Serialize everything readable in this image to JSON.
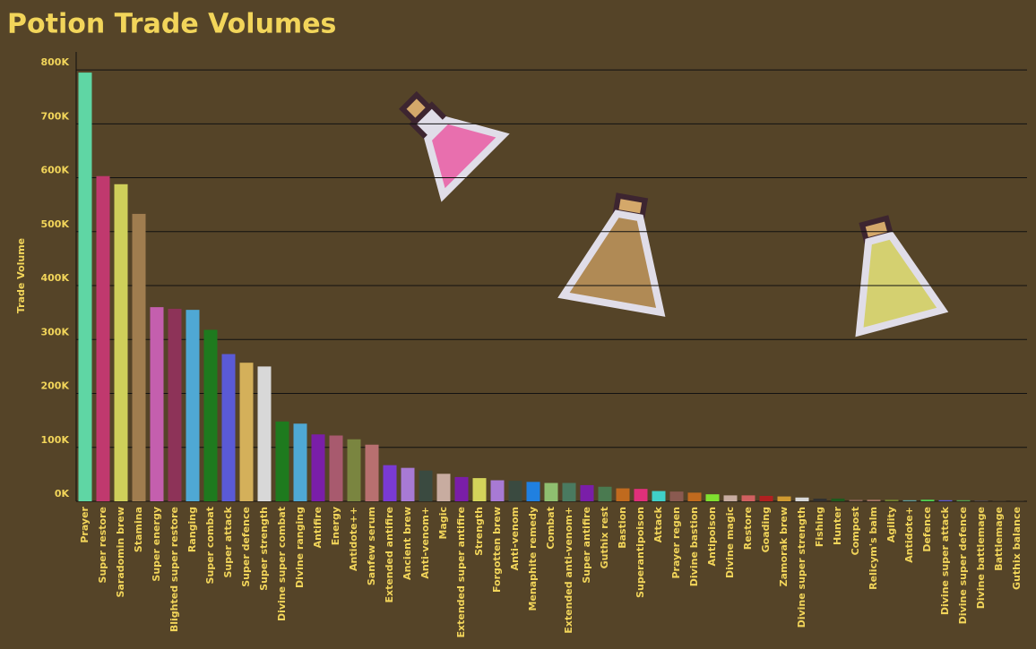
{
  "chart_data": {
    "type": "bar",
    "title": "Potion Trade Volumes",
    "y_label": "Trade Volume",
    "categories": [
      "Prayer",
      "Super restore",
      "Saradomin brew",
      "Stamina",
      "Super energy",
      "Blighted super restore",
      "Ranging",
      "Super combat",
      "Super attack",
      "Super defence",
      "Super strength",
      "Divine super combat",
      "Divine ranging",
      "Antifire",
      "Energy",
      "Antidote++",
      "Sanfew serum",
      "Extended antifire",
      "Ancient brew",
      "Anti-venom+",
      "Magic",
      "Extended super antifire",
      "Strength",
      "Forgotten brew",
      "Anti-venom",
      "Menaphite remedy",
      "Combat",
      "Extended anti-venom+",
      "Super antifire",
      "Guthix rest",
      "Bastion",
      "Superantipoison",
      "Attack",
      "Prayer regen",
      "Divine bastion",
      "Antipoison",
      "Divine magic",
      "Restore",
      "Goading",
      "Zamorak brew",
      "Divine super strength",
      "Fishing",
      "Hunter",
      "Compost",
      "Relicym's balm",
      "Agility",
      "Antidote+",
      "Defence",
      "Divine super attack",
      "Divine super defence",
      "Divine battlemage",
      "Battlemage",
      "Guthix balance"
    ],
    "values": [
      795000,
      603000,
      588000,
      533000,
      360000,
      357000,
      355000,
      318000,
      273000,
      257000,
      250000,
      148000,
      144000,
      124000,
      122000,
      115000,
      105000,
      67000,
      62000,
      57000,
      51000,
      45000,
      43000,
      39000,
      38000,
      36000,
      34000,
      34000,
      30000,
      27000,
      24000,
      23000,
      19000,
      18000,
      16000,
      13000,
      11000,
      11000,
      10000,
      9000,
      7000,
      5000,
      5000,
      3000,
      3000,
      3000,
      2000,
      3000,
      2000,
      2000,
      500,
      300,
      200
    ],
    "colors": [
      "#5fd6a4",
      "#c0396e",
      "#cfcf5a",
      "#a07d4f",
      "#c45fae",
      "#8d3358",
      "#4fa8d4",
      "#1e7a1e",
      "#5a5ad6",
      "#d4b05a",
      "#d8d8d8",
      "#1e7a1e",
      "#4fa8d4",
      "#7a1ea8",
      "#a85a6e",
      "#7a8540",
      "#b87070",
      "#7a3ad4",
      "#a87ad4",
      "#3a4a40",
      "#c8aca0",
      "#7a1ea8",
      "#d4d45a",
      "#a87ad4",
      "#3a4a40",
      "#2080e0",
      "#8fbf70",
      "#4a7a60",
      "#7a1ea8",
      "#4a7a50",
      "#c06a1e",
      "#e0307a",
      "#40d0c8",
      "#8a5a50",
      "#c06a1e",
      "#80e030",
      "#c8aca0",
      "#d06060",
      "#b02020",
      "#d09a30",
      "#d8d8d8",
      "#303030",
      "#1e5a1e",
      "#806050",
      "#a07060",
      "#708030",
      "#60a0a0",
      "#50d050",
      "#5a5ad6",
      "#50a050",
      "#6a6a9a",
      "#7a6a5a",
      "#8a7a5a"
    ],
    "ylim": [
      0,
      830000
    ],
    "yticks": [
      {
        "value": 0,
        "label": "0K"
      },
      {
        "value": 100000,
        "label": "100K"
      },
      {
        "value": 200000,
        "label": "200K"
      },
      {
        "value": 300000,
        "label": "300K"
      },
      {
        "value": 400000,
        "label": "400K"
      },
      {
        "value": 500000,
        "label": "500K"
      },
      {
        "value": 600000,
        "label": "600K"
      },
      {
        "value": 700000,
        "label": "700K"
      },
      {
        "value": 800000,
        "label": "800K"
      }
    ],
    "grid": true
  }
}
